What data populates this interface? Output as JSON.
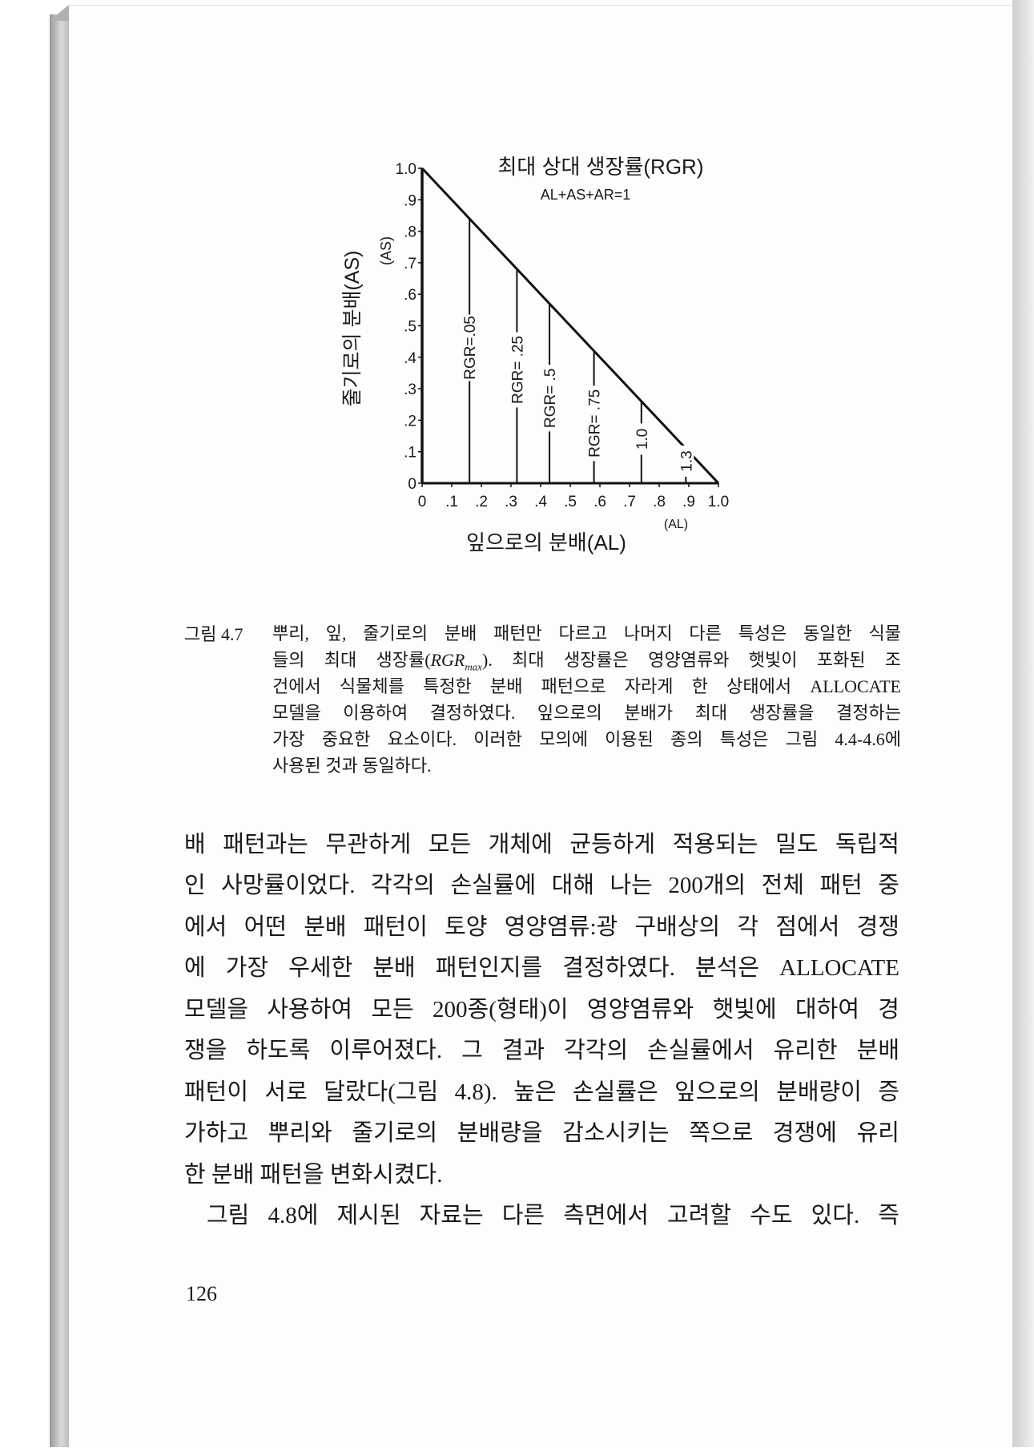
{
  "figure": {
    "chart_data": {
      "type": "line",
      "title": "최대 상대 생장률(RGR)",
      "subtitle": "AL+AS+AR=1",
      "xlabel": "잎으로의 분배(AL)",
      "xlabel_short": "(AL)",
      "ylabel": "줄기로의 분배(AS)",
      "ylabel_short": "(AS)",
      "xlim": [
        0,
        1.0
      ],
      "ylim": [
        0,
        1.0
      ],
      "x_ticks": [
        "0",
        ".1",
        ".2",
        ".3",
        ".4",
        ".5",
        ".6",
        ".7",
        ".8",
        ".9",
        "1.0"
      ],
      "y_ticks": [
        "0",
        ".1",
        ".2",
        ".3",
        ".4",
        ".5",
        ".6",
        ".7",
        ".8",
        ".9",
        "1.0"
      ],
      "boundary": {
        "x": [
          0,
          1.0
        ],
        "y": [
          1.0,
          0
        ]
      },
      "isolines": [
        {
          "label": "RGR=.05",
          "AL": 0.16
        },
        {
          "label": "RGR= .25",
          "AL": 0.32
        },
        {
          "label": "RGR= .5",
          "AL": 0.43
        },
        {
          "label": "RGR= .75",
          "AL": 0.58
        },
        {
          "label": "1.0",
          "AL": 0.74
        },
        {
          "label": "1.3",
          "AL": 0.89
        }
      ],
      "grid": false
    }
  },
  "caption": {
    "label": "그림 4.7",
    "line1": "뿌리, 잎, 줄기로의 분배 패턴만 다르고 나머지 다른 특성은 동일한 식물",
    "line2_pre": "들의 최대 생장률(",
    "line2_rgr": "RGR",
    "line2_sub": "max",
    "line2_post": "). 최대 생장률은 영양염류와 햇빛이 포화된 조",
    "line3": "건에서 식물체를 특정한 분배 패턴으로 자라게 한 상태에서 ALLOCATE",
    "line4": "모델을 이용하여 결정하였다. 잎으로의 분배가 최대 생장률을 결정하는",
    "line5": "가장 중요한 요소이다. 이러한 모의에 이용된 종의 특성은 그림 4.4-4.6에",
    "line6": "사용된 것과 동일하다."
  },
  "body": {
    "lines": [
      "배 패턴과는 무관하게 모든 개체에 균등하게 적용되는 밀도 독립적",
      "인 사망률이었다. 각각의 손실률에 대해 나는 200개의 전체 패턴 중",
      "에서 어떤 분배 패턴이 토양 영양염류:광 구배상의 각 점에서 경쟁",
      "에 가장 우세한 분배 패턴인지를 결정하였다. 분석은 ALLOCATE",
      "모델을 사용하여 모든 200종(형태)이 영양염류와 햇빛에 대하여 경",
      "쟁을 하도록 이루어졌다. 그 결과 각각의 손실률에서 유리한 분배",
      "패턴이 서로 달랐다(그림 4.8). 높은 손실률은 잎으로의 분배량이 증",
      "가하고 뿌리와 줄기로의 분배량을 감소시키는 쪽으로 경쟁에 유리",
      "한 분배 패턴을 변화시켰다.",
      "그림 4.8에 제시된 자료는 다른 측면에서 고려할 수도 있다. 즉"
    ]
  },
  "page_number": "126"
}
